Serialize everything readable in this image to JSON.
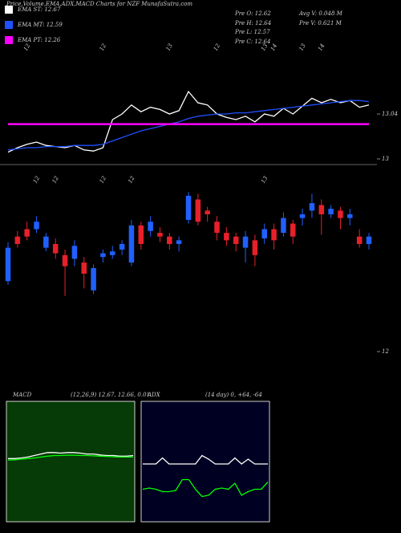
{
  "header": {
    "title": "Price,Volume,EMA,ADX,MACD Charts for NZF MunafaSutra.com",
    "stats": [
      "Pre  O: 12.62",
      "Pre  H: 12.64",
      "Pre  L: 12.57",
      "Pre  C: 12.64",
      "Avg V: 0.048  M",
      "Pre  V: 0.621 M"
    ]
  },
  "chart_data": [
    {
      "type": "line",
      "categories": [
        null,
        null,
        "12",
        null,
        null,
        null,
        null,
        null,
        null,
        null,
        "12",
        null,
        null,
        null,
        null,
        null,
        null,
        "13",
        null,
        null,
        null,
        null,
        "12",
        null,
        null,
        null,
        null,
        "13",
        "14",
        null,
        null,
        "13",
        null,
        "14",
        null,
        null,
        null,
        null,
        null
      ],
      "series": [
        {
          "name": "EMA ST: 12.67",
          "color": "#ffffff",
          "values": [
            13.006,
            13.01,
            13.013,
            13.015,
            13.012,
            13.011,
            13.01,
            13.012,
            13.008,
            13.007,
            13.01,
            13.035,
            13.04,
            13.048,
            13.042,
            13.046,
            13.044,
            13.04,
            13.043,
            13.06,
            13.05,
            13.048,
            13.04,
            13.037,
            13.035,
            13.038,
            13.033,
            13.04,
            13.038,
            13.045,
            13.04,
            13.047,
            13.054,
            13.05,
            13.053,
            13.05,
            13.052,
            13.046,
            13.048
          ]
        },
        {
          "name": "EMA MT: 12.59",
          "color": "#2050ff",
          "values": [
            13.008,
            13.009,
            13.01,
            13.01,
            13.011,
            13.011,
            13.011,
            13.012,
            13.012,
            13.012,
            13.013,
            13.016,
            13.019,
            13.022,
            13.025,
            13.027,
            13.029,
            13.031,
            13.033,
            13.036,
            13.038,
            13.039,
            13.04,
            13.04,
            13.041,
            13.041,
            13.042,
            13.043,
            13.044,
            13.045,
            13.046,
            13.047,
            13.048,
            13.049,
            13.05,
            13.051,
            13.052,
            13.052,
            13.051
          ]
        },
        {
          "name": "EMA PT: 12.26",
          "color": "#ff00ff",
          "values": [
            13.031,
            13.031,
            13.031,
            13.031,
            13.031,
            13.031,
            13.031,
            13.031,
            13.031,
            13.031,
            13.031,
            13.031,
            13.031,
            13.031,
            13.031,
            13.031,
            13.031,
            13.031,
            13.031,
            13.031,
            13.031,
            13.031,
            13.031,
            13.031,
            13.031,
            13.031,
            13.031,
            13.031,
            13.031,
            13.031,
            13.031,
            13.031,
            13.031,
            13.031,
            13.031,
            13.031,
            13.031,
            13.031,
            13.031
          ]
        }
      ],
      "ylim": [
        12.995,
        13.095
      ],
      "yticks": [
        13.04,
        13
      ]
    },
    {
      "type": "candlestick",
      "categories": [
        null,
        null,
        null,
        "12",
        null,
        "12",
        null,
        null,
        null,
        null,
        "12",
        null,
        null,
        "12",
        null,
        null,
        null,
        null,
        null,
        null,
        null,
        null,
        null,
        null,
        null,
        null,
        null,
        "13",
        null,
        null,
        null,
        null,
        null,
        null,
        null,
        null,
        null,
        null,
        null
      ],
      "open": [
        12.38,
        12.62,
        12.66,
        12.66,
        12.56,
        12.58,
        12.52,
        12.5,
        12.48,
        12.33,
        12.51,
        12.52,
        12.55,
        12.48,
        12.68,
        12.65,
        12.64,
        12.62,
        12.58,
        12.71,
        12.82,
        12.76,
        12.7,
        12.64,
        12.62,
        12.56,
        12.6,
        12.61,
        12.66,
        12.64,
        12.69,
        12.72,
        12.76,
        12.79,
        12.74,
        12.76,
        12.72,
        12.62,
        12.58
      ],
      "high": [
        12.59,
        12.65,
        12.7,
        12.73,
        12.64,
        12.61,
        12.55,
        12.6,
        12.51,
        12.47,
        12.55,
        12.57,
        12.6,
        12.71,
        12.7,
        12.73,
        12.67,
        12.64,
        12.62,
        12.86,
        12.85,
        12.78,
        12.73,
        12.67,
        12.64,
        12.65,
        12.63,
        12.69,
        12.69,
        12.75,
        12.71,
        12.77,
        12.85,
        12.82,
        12.79,
        12.78,
        12.77,
        12.66,
        12.64
      ],
      "low": [
        12.36,
        12.56,
        12.6,
        12.64,
        12.54,
        12.5,
        12.3,
        12.46,
        12.34,
        12.31,
        12.48,
        12.5,
        12.52,
        12.46,
        12.55,
        12.62,
        12.59,
        12.55,
        12.54,
        12.69,
        12.68,
        12.7,
        12.6,
        12.57,
        12.54,
        12.48,
        12.46,
        12.58,
        12.55,
        12.62,
        12.58,
        12.68,
        12.72,
        12.63,
        12.72,
        12.66,
        12.68,
        12.56,
        12.55
      ],
      "close": [
        12.56,
        12.58,
        12.62,
        12.7,
        12.62,
        12.53,
        12.46,
        12.57,
        12.42,
        12.45,
        12.53,
        12.54,
        12.58,
        12.68,
        12.58,
        12.7,
        12.62,
        12.58,
        12.6,
        12.84,
        12.7,
        12.74,
        12.64,
        12.6,
        12.58,
        12.62,
        12.52,
        12.66,
        12.6,
        12.72,
        12.62,
        12.74,
        12.8,
        12.74,
        12.77,
        12.72,
        12.74,
        12.58,
        12.62
      ],
      "up_color": "#2060ff",
      "down_color": "#e8202a",
      "ylim": [
        12,
        12.9
      ],
      "yticks": [
        12
      ]
    },
    {
      "type": "line",
      "title": "MACD",
      "subtitle": "(12,26,9) 12.67, 12.66, 0.01",
      "background": "#063a06",
      "series": [
        {
          "color": "#ffffff",
          "values": [
            0.01,
            0.01,
            0.012,
            0.015,
            0.02,
            0.025,
            0.03,
            0.03,
            0.028,
            0.03,
            0.03,
            0.028,
            0.025,
            0.025,
            0.022,
            0.02,
            0.02,
            0.018,
            0.018,
            0.02
          ]
        },
        {
          "color": "#00ff00",
          "values": [
            0.005,
            0.006,
            0.008,
            0.01,
            0.012,
            0.015,
            0.018,
            0.02,
            0.02,
            0.021,
            0.021,
            0.02,
            0.02,
            0.019,
            0.018,
            0.017,
            0.016,
            0.015,
            0.015,
            0.015
          ]
        }
      ],
      "ylim": [
        -0.2,
        0.2
      ]
    },
    {
      "type": "line",
      "title": "ADX",
      "subtitle": "(14 day) 0, +64, -64",
      "background": "#000022",
      "series": [
        {
          "color": "#ffffff",
          "values": [
            48,
            48,
            48,
            53,
            48,
            48,
            48,
            48,
            48,
            55,
            52,
            48,
            48,
            48,
            53,
            48,
            52,
            48,
            48,
            48
          ]
        },
        {
          "color": "#00ff00",
          "values": [
            27,
            28,
            27,
            25,
            25,
            26,
            35,
            35,
            27,
            21,
            22,
            27,
            28,
            27,
            32,
            22,
            25,
            27,
            27,
            33
          ]
        }
      ],
      "ylim": [
        0,
        100
      ]
    }
  ]
}
